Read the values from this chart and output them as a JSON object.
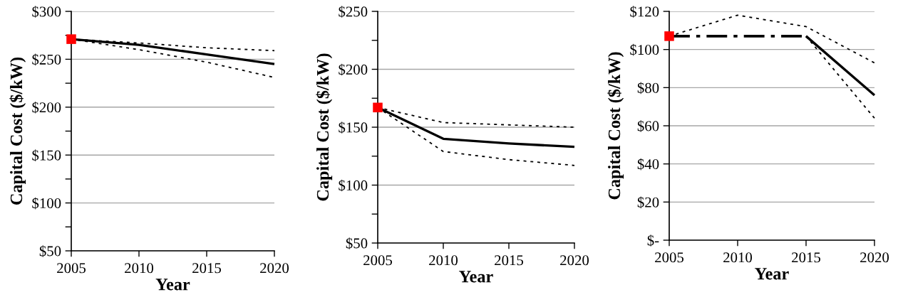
{
  "chart_data": [
    {
      "type": "line",
      "xlabel": "Year",
      "ylabel": "Capital Cost ($/kW)",
      "x": [
        2005,
        2010,
        2015,
        2020
      ],
      "xlim": [
        2005,
        2020
      ],
      "xticks": [
        2005,
        2010,
        2015,
        2020
      ],
      "ylim": [
        50,
        300
      ],
      "yticks": [
        {
          "value": 50,
          "label": "$50"
        },
        {
          "value": 75,
          "label": null
        },
        {
          "value": 100,
          "label": "$100"
        },
        {
          "value": 125,
          "label": null
        },
        {
          "value": 150,
          "label": "$150"
        },
        {
          "value": 175,
          "label": null
        },
        {
          "value": 200,
          "label": "$200"
        },
        {
          "value": 225,
          "label": null
        },
        {
          "value": 250,
          "label": "$250"
        },
        {
          "value": 275,
          "label": null
        },
        {
          "value": 300,
          "label": "$300"
        }
      ],
      "grid": "y",
      "legend": false,
      "series": [
        {
          "color": "#000000",
          "line_style": "dotted",
          "values": [
            271,
            267,
            262,
            259
          ]
        },
        {
          "color": "#000000",
          "line_style": "dotted",
          "values": [
            271,
            260,
            247,
            231
          ]
        },
        {
          "color": "#000000",
          "line_style": "solid",
          "values": [
            271,
            265,
            255,
            245
          ]
        },
        {
          "type": "scatter",
          "marker": "square",
          "color": "#ff0000",
          "x": [
            2005
          ],
          "values": [
            271
          ]
        }
      ]
    },
    {
      "type": "line",
      "xlabel": "Year",
      "ylabel": "Capital Cost ($/kW)",
      "x": [
        2005,
        2010,
        2015,
        2020
      ],
      "xlim": [
        2005,
        2020
      ],
      "xticks": [
        2005,
        2010,
        2015,
        2020
      ],
      "ylim": [
        50,
        250
      ],
      "yticks": [
        {
          "value": 50,
          "label": "$50"
        },
        {
          "value": 75,
          "label": null
        },
        {
          "value": 100,
          "label": "$100"
        },
        {
          "value": 125,
          "label": null
        },
        {
          "value": 150,
          "label": "$150"
        },
        {
          "value": 175,
          "label": null
        },
        {
          "value": 200,
          "label": "$200"
        },
        {
          "value": 225,
          "label": null
        },
        {
          "value": 250,
          "label": "$250"
        }
      ],
      "grid": "y",
      "legend": false,
      "series": [
        {
          "color": "#000000",
          "line_style": "dotted",
          "values": [
            167,
            154,
            152,
            150
          ]
        },
        {
          "color": "#000000",
          "line_style": "dotted",
          "values": [
            167,
            129,
            122,
            117
          ]
        },
        {
          "color": "#000000",
          "line_style": "solid",
          "values": [
            167,
            140,
            136,
            133
          ]
        },
        {
          "type": "scatter",
          "marker": "square",
          "color": "#ff0000",
          "x": [
            2005
          ],
          "values": [
            167
          ]
        }
      ]
    },
    {
      "type": "line",
      "xlabel": "Year",
      "ylabel": "Capital Cost ($/kW)",
      "x": [
        2005,
        2010,
        2015,
        2020
      ],
      "xlim": [
        2005,
        2020
      ],
      "xticks": [
        2005,
        2010,
        2015,
        2020
      ],
      "ylim": [
        0,
        120
      ],
      "yticks": [
        {
          "value": 0,
          "label": "$-"
        },
        {
          "value": 20,
          "label": "$20"
        },
        {
          "value": 40,
          "label": "$40"
        },
        {
          "value": 60,
          "label": "$60"
        },
        {
          "value": 80,
          "label": "$80"
        },
        {
          "value": 100,
          "label": "$100"
        },
        {
          "value": 120,
          "label": "$120"
        }
      ],
      "grid": "y",
      "legend": false,
      "series": [
        {
          "color": "#000000",
          "line_style": "dotted",
          "values": [
            107,
            118,
            112,
            93
          ]
        },
        {
          "color": "#000000",
          "line_style": "dotted",
          "x": [
            2015,
            2020
          ],
          "values": [
            107,
            64
          ]
        },
        {
          "color": "#000000",
          "line_style": "dashed",
          "x": [
            2005,
            2015
          ],
          "values": [
            107,
            107
          ]
        },
        {
          "color": "#000000",
          "line_style": "solid",
          "x": [
            2015,
            2020
          ],
          "values": [
            107,
            76
          ]
        },
        {
          "type": "scatter",
          "marker": "square",
          "color": "#ff0000",
          "x": [
            2005
          ],
          "values": [
            107
          ]
        }
      ]
    }
  ]
}
